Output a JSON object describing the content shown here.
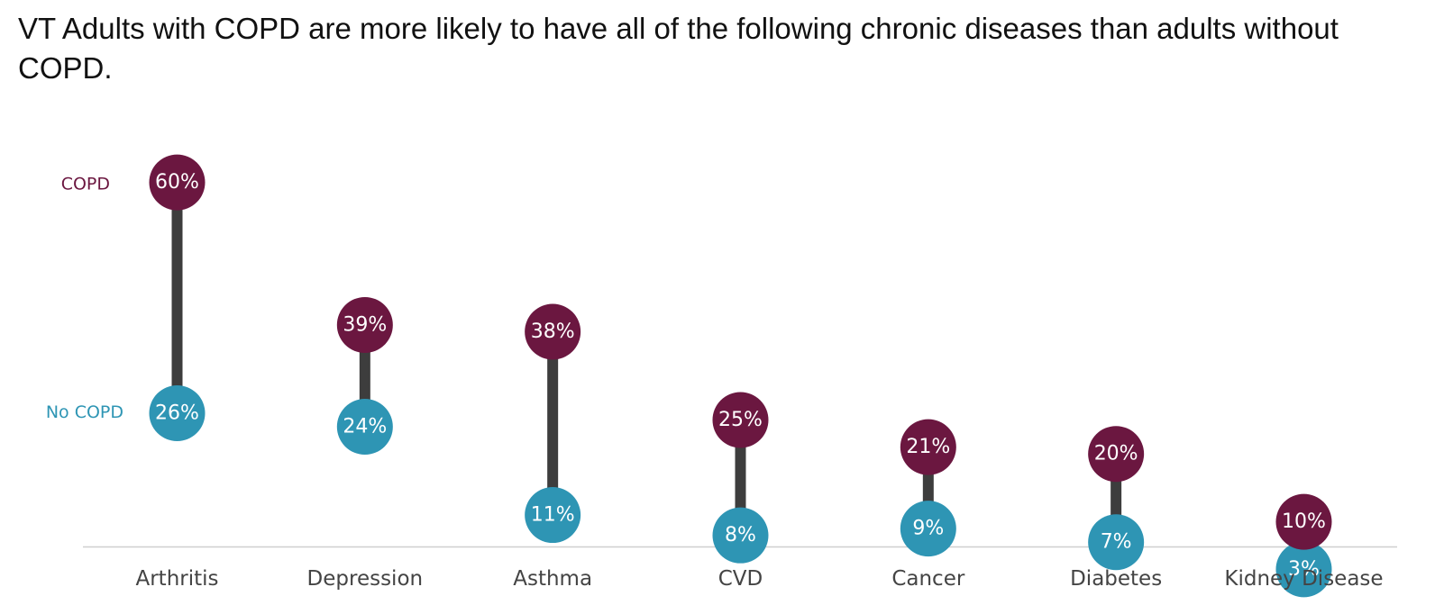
{
  "chart_data": {
    "type": "dumbbell",
    "title": "VT Adults with COPD are more likely to have all of the following chronic diseases than adults without COPD.",
    "categories": [
      "Arthritis",
      "Depression",
      "Asthma",
      "CVD",
      "Cancer",
      "Diabetes",
      "Kidney Disease"
    ],
    "series": [
      {
        "name": "COPD",
        "color": "#6b1740",
        "values": [
          60,
          39,
          38,
          25,
          21,
          20,
          10
        ],
        "labels": [
          "60%",
          "39%",
          "38%",
          "25%",
          "21%",
          "20%",
          "10%"
        ]
      },
      {
        "name": "No COPD",
        "color": "#2e95b4",
        "values": [
          26,
          24,
          11,
          8,
          9,
          7,
          3
        ],
        "labels": [
          "26%",
          "24%",
          "11%",
          "8%",
          "9%",
          "7%",
          "3%"
        ]
      }
    ],
    "connector_color": "#3d3d3d",
    "ylim": [
      0,
      65
    ],
    "grid": false,
    "legend": "left"
  }
}
